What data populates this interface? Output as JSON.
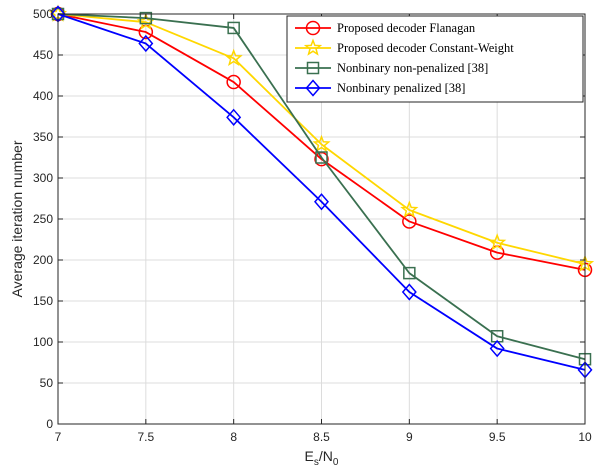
{
  "chart_data": {
    "type": "line",
    "title": "",
    "xlabel": "E",
    "xlabel_sub_s": "s",
    "xlabel_slash": "/N",
    "xlabel_sub_0": "0",
    "ylabel": "Average iteration number",
    "xlim": [
      7,
      10
    ],
    "ylim": [
      0,
      500
    ],
    "x_ticks": [
      "7",
      "7.5",
      "8",
      "8.5",
      "9",
      "9.5",
      "10"
    ],
    "y_ticks": [
      "0",
      "50",
      "100",
      "150",
      "200",
      "250",
      "300",
      "350",
      "400",
      "450",
      "500"
    ],
    "grid": true,
    "legend_position": "top-right",
    "x": [
      7,
      7.5,
      8,
      8.5,
      9,
      9.5,
      10
    ],
    "series": [
      {
        "name": "Proposed decoder Flanagan",
        "color": "#ff0000",
        "marker": "circle",
        "values": [
          500,
          478,
          417,
          323,
          247,
          209,
          188
        ]
      },
      {
        "name": "Proposed decoder Constant-Weight",
        "color": "#ffd700",
        "marker": "star",
        "values": [
          500,
          490,
          446,
          341,
          261,
          221,
          195
        ]
      },
      {
        "name": "Nonbinary non-penalized [38]",
        "color": "#3a7050",
        "marker": "square",
        "values": [
          500,
          495,
          483,
          325,
          184,
          107,
          79
        ]
      },
      {
        "name": "Nonbinary penalized [38]",
        "color": "#0000ff",
        "marker": "diamond",
        "values": [
          500,
          464,
          374,
          271,
          161,
          92,
          66
        ]
      }
    ]
  }
}
